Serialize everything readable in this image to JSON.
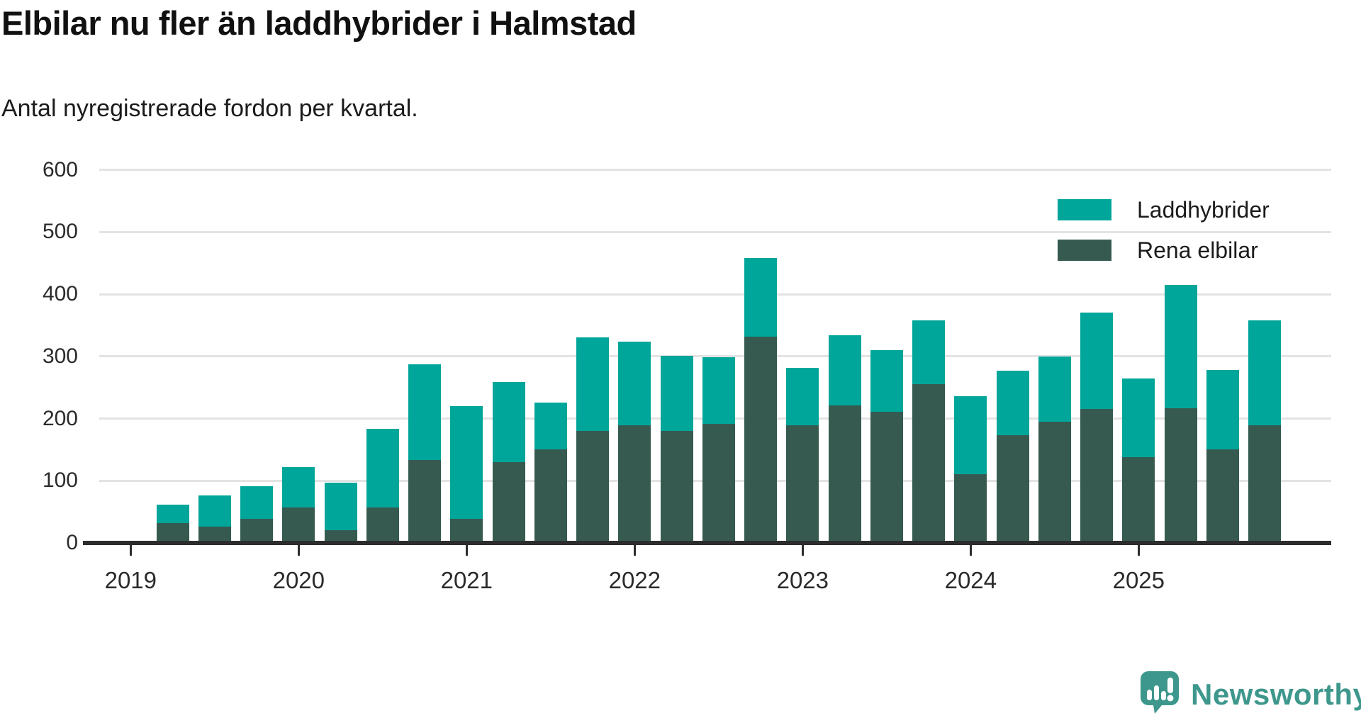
{
  "header": {
    "title": "Elbilar nu fler än laddhybrider i Halmstad",
    "subtitle": "Antal nyregistrerade fordon per kvartal."
  },
  "legend": {
    "items": [
      {
        "label": "Laddhybrider",
        "color": "#00a69a"
      },
      {
        "label": "Rena elbilar",
        "color": "#365a50"
      }
    ]
  },
  "footer": {
    "logo_text": "Newsworthy",
    "logo_color": "#3e978c"
  },
  "chart_data": {
    "type": "bar",
    "stacked": true,
    "title": "Elbilar nu fler än laddhybrider i Halmstad",
    "subtitle": "Antal nyregistrerade fordon per kvartal.",
    "xlabel": "",
    "ylabel": "",
    "ylim": [
      0,
      600
    ],
    "yticks": [
      0,
      100,
      200,
      300,
      400,
      500,
      600
    ],
    "xticks": [
      "2019",
      "2020",
      "2021",
      "2022",
      "2023",
      "2024",
      "2025"
    ],
    "grid": true,
    "legend_position": "top-right",
    "categories": [
      "2019 Q2",
      "2019 Q3",
      "2019 Q4",
      "2020 Q1",
      "2020 Q2",
      "2020 Q3",
      "2020 Q4",
      "2021 Q1",
      "2021 Q2",
      "2021 Q3",
      "2021 Q4",
      "2022 Q1",
      "2022 Q2",
      "2022 Q3",
      "2022 Q4",
      "2023 Q1",
      "2023 Q2",
      "2023 Q3",
      "2023 Q4",
      "2024 Q1",
      "2024 Q2",
      "2024 Q3",
      "2024 Q4",
      "2025 Q1",
      "2025 Q2",
      "2025 Q3",
      "2025 Q4"
    ],
    "series": [
      {
        "name": "Rena elbilar",
        "color": "#365a50",
        "stack": "bottom",
        "values": [
          32,
          26,
          39,
          57,
          21,
          57,
          133,
          39,
          130,
          150,
          180,
          189,
          180,
          192,
          332,
          189,
          221,
          211,
          255,
          110,
          173,
          195,
          215,
          138,
          216,
          150,
          189
        ]
      },
      {
        "name": "Laddhybrider",
        "color": "#00a69a",
        "stack": "top",
        "values": [
          29,
          50,
          52,
          65,
          76,
          127,
          154,
          181,
          129,
          76,
          151,
          135,
          121,
          107,
          126,
          92,
          113,
          99,
          103,
          126,
          104,
          105,
          155,
          126,
          199,
          128,
          169
        ]
      }
    ],
    "totals": [
      61,
      76,
      91,
      122,
      97,
      184,
      287,
      220,
      259,
      226,
      331,
      324,
      301,
      299,
      458,
      281,
      334,
      310,
      358,
      236,
      277,
      300,
      370,
      264,
      415,
      278,
      358
    ]
  }
}
